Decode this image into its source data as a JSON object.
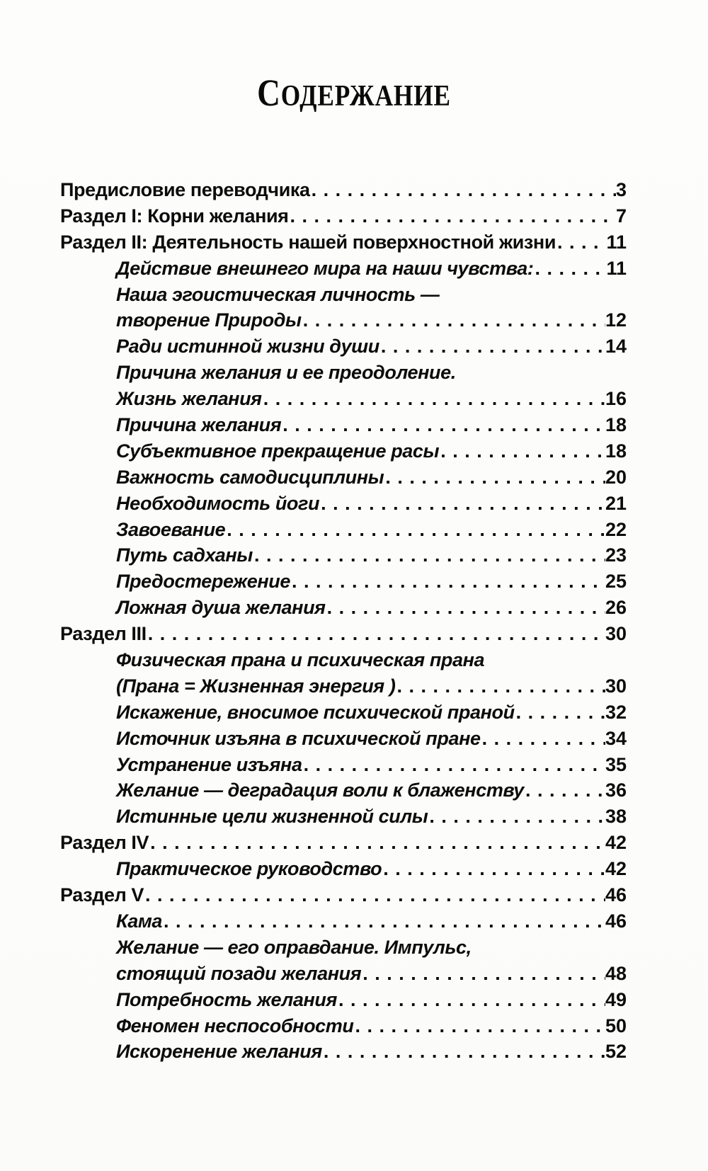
{
  "title": "Содержание",
  "colors": {
    "text": "#0c0c0c",
    "background": "#fdfdfc"
  },
  "toc": {
    "entries": [
      {
        "label": "Предисловие переводчика",
        "page": "3",
        "level": 0
      },
      {
        "label": "Раздел I: Корни желания",
        "page": "7",
        "level": 0
      },
      {
        "label": "Раздел II: Деятельность нашей поверхностной жизни",
        "page": "11",
        "level": 0
      },
      {
        "label": "Действие внешнего мира на наши чувства:",
        "page": "11",
        "level": 1
      },
      {
        "label": "Наша эгоистическая личность —",
        "page": "",
        "level": 1
      },
      {
        "label": "творение Природы",
        "page": "12",
        "level": 1
      },
      {
        "label": "Ради истинной жизни души",
        "page": "14",
        "level": 1
      },
      {
        "label": "Причина желания и ее преодоление.",
        "page": "",
        "level": 1
      },
      {
        "label": "Жизнь желания",
        "page": "16",
        "level": 1
      },
      {
        "label": "Причина желания",
        "page": "18",
        "level": 1
      },
      {
        "label": "Субъективное прекращение расы",
        "page": "18",
        "level": 1
      },
      {
        "label": "Важность самодисциплины",
        "page": "20",
        "level": 1
      },
      {
        "label": "Необходимость йоги",
        "page": "21",
        "level": 1
      },
      {
        "label": "Завоевание",
        "page": "22",
        "level": 1
      },
      {
        "label": "Путь садханы",
        "page": "23",
        "level": 1
      },
      {
        "label": "Предостережение",
        "page": "25",
        "level": 1
      },
      {
        "label": "Ложная душа желания",
        "page": "26",
        "level": 1
      },
      {
        "label": "Раздел III",
        "page": "30",
        "level": 0
      },
      {
        "label": "Физическая прана и психическая прана",
        "page": "",
        "level": 1
      },
      {
        "label": "(Прана = Жизненная энергия )",
        "page": "30",
        "level": 1
      },
      {
        "label": "Искажение, вносимое психической праной",
        "page": "32",
        "level": 1
      },
      {
        "label": "Источник изъяна в психической пране",
        "page": "34",
        "level": 1
      },
      {
        "label": "Устранение изъяна",
        "page": "35",
        "level": 1
      },
      {
        "label": "Желание — деградация воли к блаженству",
        "page": "36",
        "level": 1
      },
      {
        "label": "Истинные цели жизненной силы",
        "page": "38",
        "level": 1
      },
      {
        "label": "Раздел IV",
        "page": "42",
        "level": 0
      },
      {
        "label": "Практическое руководство",
        "page": "42",
        "level": 1
      },
      {
        "label": "Раздел V",
        "page": "46",
        "level": 0
      },
      {
        "label": "Кама",
        "page": "46",
        "level": 1
      },
      {
        "label": "Желание — его оправдание. Импульс,",
        "page": "",
        "level": 1
      },
      {
        "label": "стоящий позади желания",
        "page": "48",
        "level": 1
      },
      {
        "label": "Потребность желания",
        "page": "49",
        "level": 1
      },
      {
        "label": "Феномен неспособности",
        "page": "50",
        "level": 1
      },
      {
        "label": "Искоренение желания",
        "page": "52",
        "level": 1
      }
    ]
  }
}
